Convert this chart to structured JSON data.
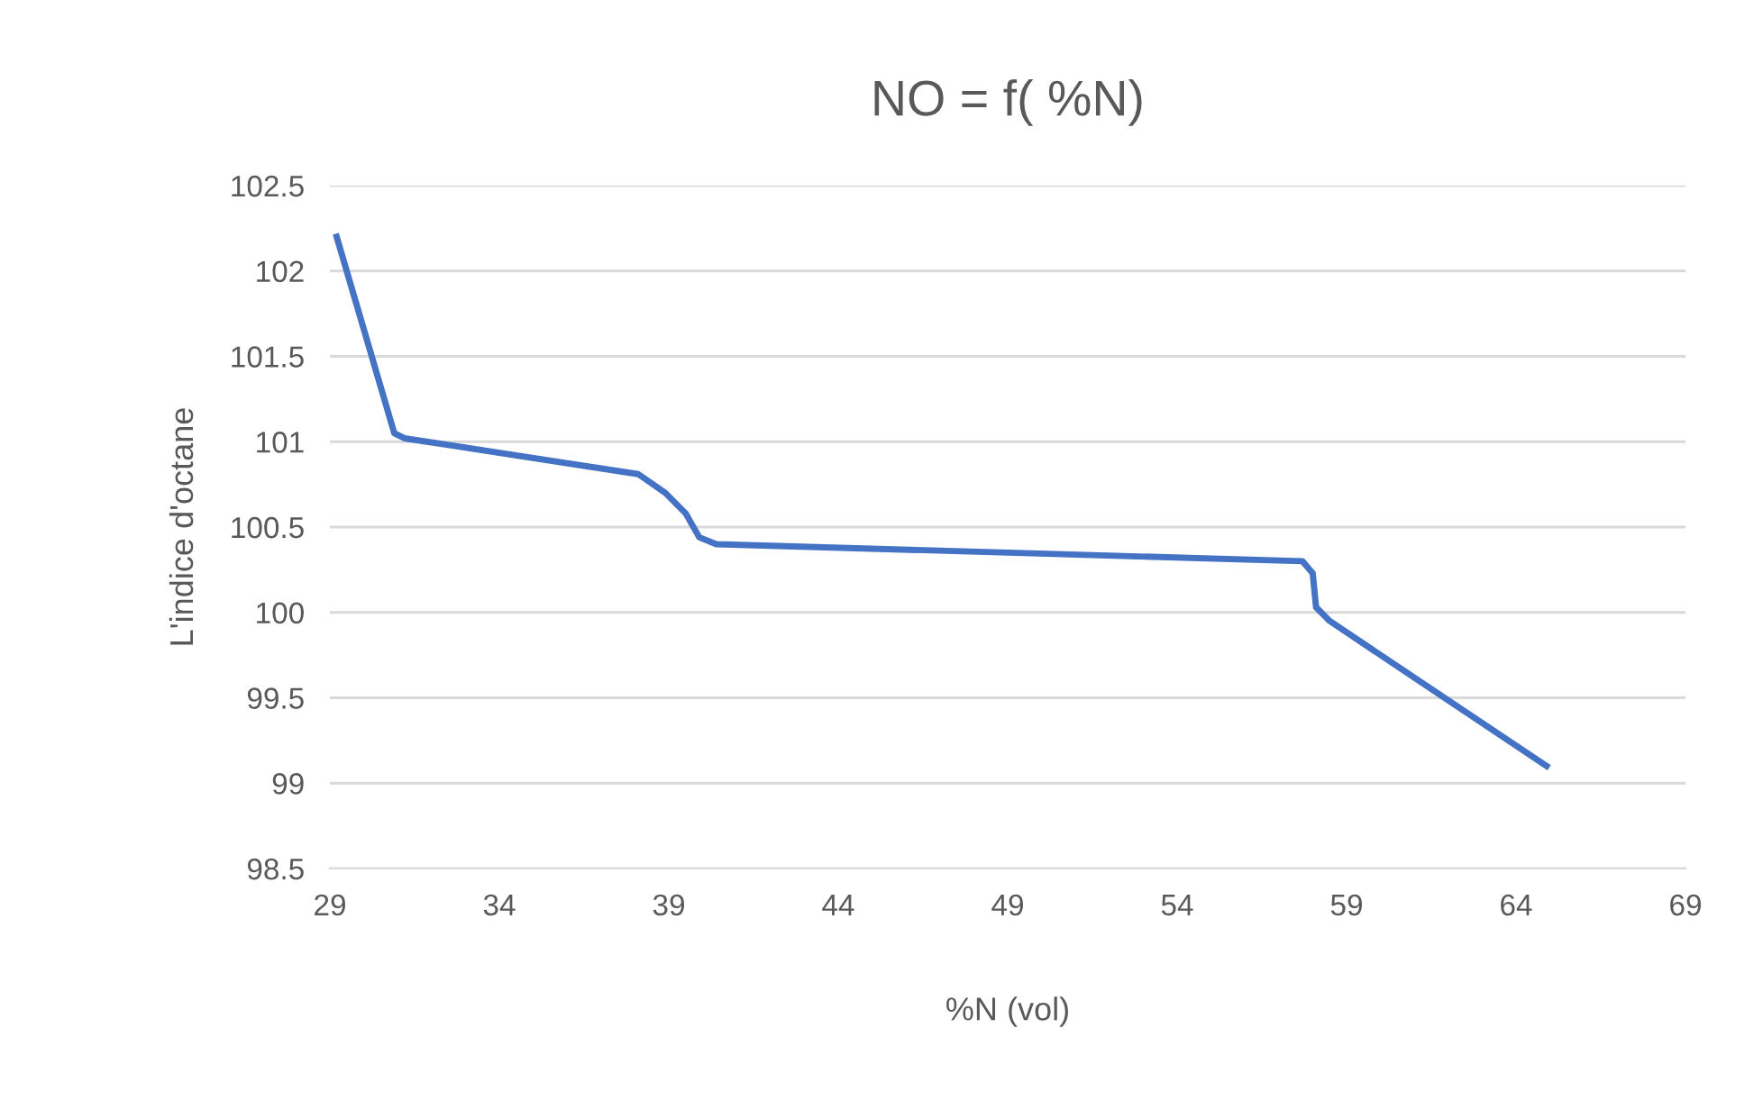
{
  "chart_data": {
    "type": "line",
    "title": "NO = f( %N)",
    "xlabel": "%N (vol)",
    "ylabel": "L'indice d'octane",
    "x": [
      29.2,
      30.9,
      31.2,
      38.1,
      38.9,
      39.5,
      39.9,
      40.4,
      57.7,
      58.0,
      58.1,
      58.5,
      64.9
    ],
    "series": [
      {
        "color": "#4472c4",
        "values": [
          102.2,
          101.05,
          101.02,
          100.81,
          100.7,
          100.58,
          100.44,
          100.4,
          100.3,
          100.23,
          100.03,
          99.95,
          99.1
        ]
      }
    ],
    "xlim": [
      29,
      69
    ],
    "xticks": [
      29,
      34,
      39,
      44,
      49,
      54,
      59,
      64,
      69
    ],
    "ylim": [
      98.5,
      102.5
    ],
    "yticks": [
      98.5,
      99,
      99.5,
      100,
      100.5,
      101,
      101.5,
      102,
      102.5
    ],
    "grid": "y",
    "marker": "none",
    "line_style": "solid",
    "legend": false
  }
}
